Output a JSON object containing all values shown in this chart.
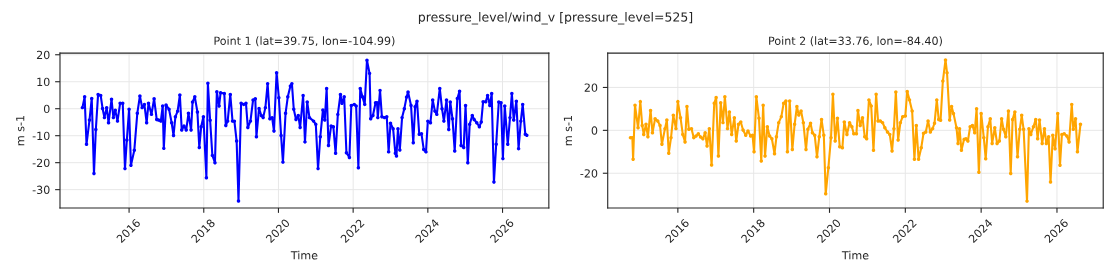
{
  "chart_data": [
    {
      "type": "line",
      "title": "Point 1 (lat=39.75, lon=-104.99)",
      "xlabel": "Time",
      "ylabel": "m s-1",
      "annotations": [
        "pressure_level/wind_v [pressure_level=525]"
      ],
      "x": [
        2014.75,
        2014.81,
        2014.86,
        2014.94,
        2015.0,
        2015.06,
        2015.11,
        2015.17,
        2015.24,
        2015.29,
        2015.34,
        2015.4,
        2015.45,
        2015.53,
        2015.58,
        2015.63,
        2015.69,
        2015.76,
        2015.83,
        2015.89,
        2015.94,
        2016.0,
        2016.05,
        2016.14,
        2016.22,
        2016.29,
        2016.35,
        2016.41,
        2016.47,
        2016.52,
        2016.6,
        2016.67,
        2016.74,
        2016.79,
        2016.85,
        2016.9,
        2016.93,
        2016.99,
        2017.07,
        2017.14,
        2017.19,
        2017.24,
        2017.3,
        2017.36,
        2017.41,
        2017.47,
        2017.53,
        2017.59,
        2017.66,
        2017.7,
        2017.76,
        2017.83,
        2017.88,
        2017.93,
        2017.99,
        2018.07,
        2018.11,
        2018.17,
        2018.23,
        2018.3,
        2018.35,
        2018.41,
        2018.45,
        2018.55,
        2018.59,
        2018.64,
        2018.71,
        2018.77,
        2018.82,
        2018.88,
        2018.93,
        2019.0,
        2019.07,
        2019.13,
        2019.18,
        2019.25,
        2019.32,
        2019.38,
        2019.41,
        2019.48,
        2019.54,
        2019.59,
        2019.65,
        2019.71,
        2019.77,
        2019.83,
        2019.88,
        2019.95,
        2020.01,
        2020.07,
        2020.12,
        2020.19,
        2020.25,
        2020.32,
        2020.36,
        2020.41,
        2020.47,
        2020.53,
        2020.58,
        2020.66,
        2020.71,
        2020.77,
        2020.83,
        2020.94,
        2021.0,
        2021.06,
        2021.12,
        2021.19,
        2021.24,
        2021.29,
        2021.34,
        2021.41,
        2021.47,
        2021.53,
        2021.59,
        2021.66,
        2021.7,
        2021.76,
        2021.82,
        2021.9,
        2021.95,
        2022.03,
        2022.08,
        2022.14,
        2022.19,
        2022.25,
        2022.31,
        2022.37,
        2022.44,
        2022.47,
        2022.53,
        2022.6,
        2022.64,
        2022.66,
        2022.72,
        2022.77,
        2022.84,
        2022.9,
        2022.95,
        2023.0,
        2023.07,
        2023.13,
        2023.16,
        2023.2,
        2023.25,
        2023.31,
        2023.37,
        2023.43,
        2023.47,
        2023.55,
        2023.61,
        2023.66,
        2023.71,
        2023.77,
        2023.83,
        2023.89,
        2023.95,
        2024.0,
        2024.07,
        2024.13,
        2024.19,
        2024.24,
        2024.32,
        2024.38,
        2024.43,
        2024.5,
        2024.56,
        2024.6,
        2024.66,
        2024.72,
        2024.79,
        2024.85,
        2024.89,
        2024.96,
        2025.01,
        2025.07,
        2025.12,
        2025.19,
        2025.24,
        2025.31,
        2025.38,
        2025.43,
        2025.48,
        2025.55,
        2025.6,
        2025.66,
        2025.71,
        2025.77,
        2025.83,
        2025.9,
        2025.96,
        2026.01,
        2026.06,
        2026.14,
        2026.2,
        2026.25,
        2026.3,
        2026.37,
        2026.43,
        2026.49,
        2026.54,
        2026.61,
        2026.65
      ],
      "series": [
        {
          "color": "#0000ff",
          "values": [
            0.4,
            4.4,
            -13.2,
            -4.2,
            3.8,
            -24.0,
            -7.7,
            5.3,
            4.9,
            0.1,
            -3.3,
            0.4,
            -5.2,
            3.5,
            -3.3,
            -0.6,
            -4.6,
            2.0,
            2.0,
            -22.2,
            -11.6,
            -0.2,
            -21.0,
            -15.4,
            -1.7,
            4.7,
            0.4,
            1.6,
            -5.2,
            2.0,
            -2.1,
            3.7,
            -4.0,
            -4.2,
            -4.6,
            1.0,
            -14.7,
            1.4,
            -0.2,
            -5.2,
            -9.9,
            -3.0,
            -0.9,
            5.1,
            -7.9,
            -6.4,
            -7.9,
            -1.7,
            -7.9,
            2.5,
            4.4,
            -1.2,
            -14.4,
            -6.7,
            -3.0,
            -25.6,
            9.4,
            -4.3,
            -17.3,
            -20.0,
            6.3,
            1.0,
            5.9,
            5.6,
            -6.2,
            -4.6,
            5.3,
            -4.6,
            -4.6,
            -12.0,
            -34.2,
            2.0,
            1.6,
            2.0,
            -7.0,
            -4.6,
            3.2,
            3.7,
            -10.4,
            0.1,
            -2.5,
            -3.3,
            0.4,
            9.3,
            -3.7,
            -3.3,
            -8.3,
            13.3,
            4.1,
            -9.9,
            -19.8,
            -1.7,
            4.4,
            8.4,
            9.3,
            -0.2,
            -4.0,
            -2.5,
            -7.0,
            4.9,
            -12.3,
            2.5,
            -3.3,
            -4.6,
            -5.8,
            -22.2,
            -10.4,
            -0.5,
            -4.2,
            7.5,
            -13.6,
            -6.4,
            -6.7,
            -16.5,
            -2.1,
            5.3,
            2.0,
            4.4,
            -16.3,
            -18.1,
            1.2,
            1.6,
            1.0,
            -21.9,
            7.5,
            4.4,
            1.6,
            18.0,
            13.1,
            -3.7,
            -2.5,
            2.2,
            2.2,
            -3.3,
            6.8,
            -3.0,
            -3.3,
            -3.0,
            -16.0,
            -5.4,
            -7.4,
            -16.5,
            -17.5,
            -7.4,
            -15.3,
            -3.3,
            0.0,
            4.3,
            6.2,
            1.2,
            -12.6,
            0.7,
            2.8,
            -9.5,
            -9.3,
            -15.1,
            -16.0,
            -4.6,
            -5.2,
            3.2,
            -0.9,
            -2.1,
            7.5,
            0.0,
            -4.6,
            3.2,
            -7.7,
            2.5,
            -3.7,
            -15.7,
            3.8,
            6.5,
            -13.6,
            -14.4,
            1.2,
            -20.0,
            -5.8,
            -2.5,
            -4.0,
            -5.2,
            -6.7,
            -4.9,
            2.6,
            2.6,
            4.9,
            1.2,
            5.6,
            -27.2,
            -13.2,
            2.5,
            2.2,
            -18.5,
            1.0,
            -13.2,
            -3.3,
            5.6,
            -4.2,
            2.8,
            -14.8,
            -4.6,
            1.6,
            -9.5,
            -9.8
          ]
        }
      ],
      "xlim": [
        2014.15,
        2027.24
      ],
      "xticks": [
        2016,
        2018,
        2020,
        2022,
        2024,
        2026
      ],
      "ylim": [
        -36.8,
        20.6
      ],
      "yticks": [
        -30,
        -20,
        -10,
        0,
        10,
        20
      ],
      "grid": true,
      "marker": "circle",
      "line_style": "solid"
    },
    {
      "type": "line",
      "title": "Point 2 (lat=33.76, lon=-84.40)",
      "xlabel": "Time",
      "ylabel": "m s-1",
      "x": [
        2014.75,
        2014.8,
        2014.82,
        2014.87,
        2014.95,
        2015.01,
        2015.06,
        2015.1,
        2015.16,
        2015.21,
        2015.28,
        2015.33,
        2015.4,
        2015.47,
        2015.53,
        2015.58,
        2015.66,
        2015.71,
        2015.76,
        2015.82,
        2015.88,
        2015.95,
        2016.0,
        2016.07,
        2016.13,
        2016.19,
        2016.24,
        2016.29,
        2016.36,
        2016.42,
        2016.48,
        2016.54,
        2016.6,
        2016.66,
        2016.72,
        2016.77,
        2016.83,
        2016.89,
        2016.96,
        2017.01,
        2017.07,
        2017.13,
        2017.19,
        2017.24,
        2017.31,
        2017.36,
        2017.42,
        2017.49,
        2017.54,
        2017.6,
        2017.66,
        2017.72,
        2017.79,
        2017.85,
        2017.92,
        2017.97,
        2018.01,
        2018.07,
        2018.14,
        2018.2,
        2018.25,
        2018.3,
        2018.36,
        2018.42,
        2018.48,
        2018.55,
        2018.6,
        2018.66,
        2018.73,
        2018.79,
        2018.85,
        2018.89,
        2018.95,
        2019.02,
        2019.08,
        2019.14,
        2019.19,
        2019.25,
        2019.31,
        2019.38,
        2019.43,
        2019.5,
        2019.55,
        2019.61,
        2019.67,
        2019.73,
        2019.79,
        2019.85,
        2019.9,
        2019.97,
        2020.04,
        2020.09,
        2020.15,
        2020.21,
        2020.27,
        2020.34,
        2020.39,
        2020.46,
        2020.53,
        2020.59,
        2020.64,
        2020.71,
        2020.75,
        2020.81,
        2020.87,
        2020.93,
        2020.98,
        2021.04,
        2021.1,
        2021.16,
        2021.23,
        2021.28,
        2021.34,
        2021.4,
        2021.46,
        2021.53,
        2021.59,
        2021.65,
        2021.7,
        2021.75,
        2021.81,
        2021.87,
        2021.93,
        2022.0,
        2022.05,
        2022.11,
        2022.18,
        2022.24,
        2022.29,
        2022.35,
        2022.42,
        2022.48,
        2022.54,
        2022.6,
        2022.66,
        2022.72,
        2022.77,
        2022.83,
        2022.88,
        2022.93,
        2022.99,
        2023.06,
        2023.1,
        2023.17,
        2023.22,
        2023.27,
        2023.35,
        2023.39,
        2023.43,
        2023.48,
        2023.55,
        2023.6,
        2023.65,
        2023.71,
        2023.77,
        2023.83,
        2023.88,
        2023.94,
        2024.0,
        2024.07,
        2024.12,
        2024.18,
        2024.24,
        2024.29,
        2024.36,
        2024.42,
        2024.48,
        2024.54,
        2024.59,
        2024.65,
        2024.72,
        2024.78,
        2024.83,
        2024.89,
        2024.96,
        2025.02,
        2025.07,
        2025.12,
        2025.21,
        2025.26,
        2025.31,
        2025.38,
        2025.44,
        2025.49,
        2025.54,
        2025.61,
        2025.67,
        2025.72,
        2025.78,
        2025.83,
        2025.89,
        2025.95,
        2026.02,
        2026.08,
        2026.13,
        2026.19,
        2026.26,
        2026.32,
        2026.39,
        2026.43,
        2026.49,
        2026.54,
        2026.62
      ],
      "series": [
        {
          "color": "#ffa500",
          "values": [
            -3.4,
            -3.4,
            -13.5,
            11.7,
            1.2,
            13.4,
            2.3,
            -1.9,
            2.8,
            -3.0,
            9.3,
            -1.1,
            5.4,
            4.4,
            2.3,
            -6.5,
            0.8,
            4.8,
            -10.7,
            -3.4,
            7.0,
            0.8,
            13.4,
            5.9,
            -1.9,
            -5.4,
            11.1,
            0.5,
            0.8,
            -3.4,
            -2.6,
            -1.6,
            -3.1,
            -3.9,
            -1.1,
            -7.3,
            0.8,
            -16.2,
            12.6,
            15.3,
            -12.0,
            12.9,
            3.6,
            15.7,
            0.8,
            8.6,
            -1.9,
            5.9,
            -5.0,
            2.8,
            3.9,
            0.2,
            -2.3,
            -0.3,
            -2.6,
            -2.3,
            -10.0,
            15.7,
            5.6,
            -14.3,
            11.7,
            -12.0,
            1.7,
            -2.6,
            -3.9,
            -10.9,
            -3.0,
            3.6,
            6.4,
            12.6,
            13.7,
            -10.0,
            13.7,
            -8.9,
            2.8,
            11.1,
            7.2,
            9.0,
            3.6,
            -8.9,
            0.5,
            3.3,
            -1.1,
            -2.3,
            -12.3,
            -3.0,
            5.1,
            -2.3,
            -29.6,
            -17.4,
            -3.4,
            16.8,
            -5.0,
            5.6,
            -7.6,
            -8.1,
            3.9,
            -1.9,
            3.6,
            1.7,
            -1.6,
            -1.6,
            9.3,
            2.3,
            5.9,
            -3.0,
            -3.9,
            14.2,
            11.4,
            -9.3,
            16.8,
            4.4,
            4.4,
            3.6,
            1.2,
            -0.8,
            -1.9,
            -9.6,
            0.8,
            17.9,
            -4.5,
            3.6,
            6.4,
            6.7,
            18.1,
            14.2,
            9.0,
            -13.5,
            2.3,
            -13.5,
            -8.1,
            -1.4,
            -0.8,
            4.4,
            -0.8,
            0.8,
            3.3,
            14.2,
            5.1,
            4.7,
            23.0,
            32.8,
            26.9,
            4.8,
            11.1,
            7.9,
            1.2,
            -6.1,
            0.8,
            -9.3,
            -4.2,
            -3.9,
            -5.0,
            1.7,
            2.3,
            -1.1,
            10.1,
            -19.5,
            7.9,
            -3.4,
            -13.2,
            1.7,
            5.4,
            -6.1,
            1.2,
            -6.1,
            -5.0,
            5.4,
            0.5,
            -3.0,
            9.0,
            -20.1,
            5.1,
            8.6,
            -12.3,
            0.5,
            7.0,
            0.5,
            -33.0,
            0.8,
            -1.9,
            1.7,
            5.1,
            -3.9,
            4.8,
            -6.1,
            0.8,
            -6.1,
            -3.0,
            -24.1,
            -2.3,
            -8.6,
            7.9,
            -16.3,
            -1.9,
            -1.6,
            -2.6,
            -5.4,
            12.1,
            0.5,
            5.4,
            -10.0,
            2.8
          ]
        }
      ],
      "xlim": [
        2014.15,
        2027.22
      ],
      "xticks": [
        2016,
        2018,
        2020,
        2022,
        2024,
        2026
      ],
      "ylim": [
        -36.2,
        36.0
      ],
      "yticks": [
        -20,
        0,
        20
      ],
      "grid": true,
      "marker": "circle",
      "line_style": "solid"
    }
  ]
}
